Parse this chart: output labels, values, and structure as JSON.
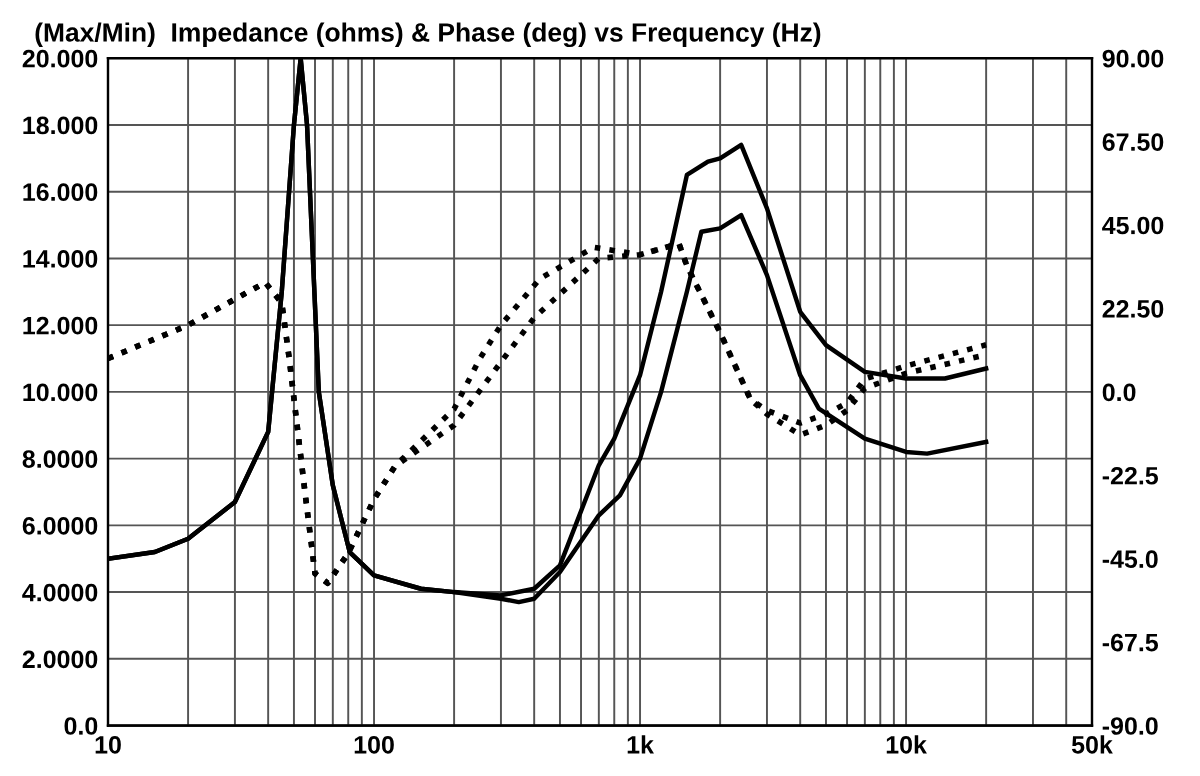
{
  "chart_data": {
    "type": "line",
    "title": "(Max/Min)  Impedance (ohms) & Phase (deg) vs Frequency (Hz)",
    "log": "x",
    "grid": true,
    "marker": "none",
    "xlim": [
      10,
      50000
    ],
    "xticks": [
      10,
      {
        "value": 20,
        "label": null
      },
      {
        "value": 30,
        "label": null
      },
      {
        "value": 40,
        "label": null
      },
      {
        "value": 50,
        "label": null
      },
      {
        "value": 60,
        "label": null
      },
      {
        "value": 70,
        "label": null
      },
      {
        "value": 80,
        "label": null
      },
      {
        "value": 90,
        "label": null
      },
      100,
      {
        "value": 200,
        "label": null
      },
      {
        "value": 300,
        "label": null
      },
      {
        "value": 400,
        "label": null
      },
      {
        "value": 500,
        "label": null
      },
      {
        "value": 600,
        "label": null
      },
      {
        "value": 700,
        "label": null
      },
      {
        "value": 800,
        "label": null
      },
      {
        "value": 900,
        "label": null
      },
      {
        "value": 1000,
        "label": "1k"
      },
      {
        "value": 2000,
        "label": null
      },
      {
        "value": 3000,
        "label": null
      },
      {
        "value": 4000,
        "label": null
      },
      {
        "value": 5000,
        "label": null
      },
      {
        "value": 6000,
        "label": null
      },
      {
        "value": 7000,
        "label": null
      },
      {
        "value": 8000,
        "label": null
      },
      {
        "value": 9000,
        "label": null
      },
      {
        "value": 10000,
        "label": "10k"
      },
      {
        "value": 20000,
        "label": null
      },
      {
        "value": 30000,
        "label": null
      },
      {
        "value": 40000,
        "label": null
      },
      {
        "value": 50000,
        "label": "50k"
      }
    ],
    "ylim": [
      0,
      20
    ],
    "yticks": [
      {
        "value": 0,
        "label": "0.0"
      },
      {
        "value": 2,
        "label": "2.0000"
      },
      {
        "value": 4,
        "label": "4.0000"
      },
      {
        "value": 6,
        "label": "6.0000"
      },
      {
        "value": 8,
        "label": "8.0000"
      },
      {
        "value": 10,
        "label": "10.000"
      },
      {
        "value": 12,
        "label": "12.000"
      },
      {
        "value": 14,
        "label": "14.000"
      },
      {
        "value": 16,
        "label": "16.000"
      },
      {
        "value": 18,
        "label": "18.000"
      },
      {
        "value": 20,
        "label": "20.000"
      }
    ],
    "y2lim": [
      -90,
      90
    ],
    "y2ticks": [
      {
        "value": -90,
        "label": "-90.0"
      },
      {
        "value": -67.5,
        "label": "-67.5"
      },
      {
        "value": -45,
        "label": "-45.0"
      },
      {
        "value": -22.5,
        "label": "-22.5"
      },
      {
        "value": 0,
        "label": "0.0"
      },
      {
        "value": 22.5,
        "label": "22.50"
      },
      {
        "value": 45,
        "label": "45.00"
      },
      {
        "value": 67.5,
        "label": "67.50"
      },
      {
        "value": 90,
        "label": "90.00"
      }
    ],
    "series": [
      {
        "color": "#000000",
        "line_style": "solid",
        "x": [
          10,
          15,
          20,
          30,
          40,
          45,
          50,
          53,
          56,
          62,
          70,
          81,
          100,
          150,
          200,
          300,
          400,
          500,
          700,
          800,
          1000,
          1200,
          1500,
          1800,
          2000,
          2400,
          3000,
          4000,
          5000,
          7000,
          10000,
          14000,
          20000
        ],
        "values": [
          5.0,
          5.2,
          5.6,
          6.7,
          8.8,
          13,
          18,
          20,
          18,
          10,
          7.2,
          5.2,
          4.5,
          4.1,
          4.0,
          3.9,
          4.1,
          4.8,
          7.8,
          8.6,
          10.5,
          13,
          16.5,
          16.9,
          17.0,
          17.4,
          15.5,
          12.4,
          11.4,
          10.6,
          10.4,
          10.4,
          10.7
        ]
      },
      {
        "color": "#000000",
        "line_style": "solid",
        "x": [
          10,
          15,
          20,
          30,
          40,
          45,
          50,
          53,
          56,
          62,
          70,
          81,
          100,
          150,
          200,
          300,
          350,
          400,
          500,
          700,
          840,
          1000,
          1200,
          1500,
          1700,
          2000,
          2400,
          3000,
          4000,
          4700,
          7000,
          10000,
          12000,
          20000
        ],
        "values": [
          5.0,
          5.2,
          5.6,
          6.7,
          8.8,
          13,
          18,
          20,
          18,
          10,
          7.2,
          5.2,
          4.5,
          4.1,
          4.0,
          3.8,
          3.7,
          3.8,
          4.6,
          6.3,
          6.9,
          8.0,
          10,
          13,
          14.8,
          14.9,
          15.3,
          13.5,
          10.5,
          9.5,
          8.6,
          8.2,
          8.15,
          8.5
        ]
      },
      {
        "color": "#000000",
        "line_style": "dotted",
        "axis": "y2",
        "x": [
          10,
          20,
          30,
          39,
          45,
          48,
          55,
          60,
          67,
          80,
          100,
          120,
          200,
          250,
          300,
          420,
          670,
          1000,
          1400,
          1500,
          2000,
          2600,
          3000,
          4000,
          5000,
          6000,
          7000,
          10000,
          20000
        ],
        "values": [
          9,
          18,
          25,
          29.5,
          24,
          9,
          -27,
          -49,
          -51.6,
          -43.5,
          -29,
          -20,
          -4.6,
          9,
          18,
          30.5,
          39,
          37,
          40,
          34,
          16,
          -2,
          -5,
          -8.4,
          -6,
          -3,
          3.5,
          7,
          12.7
        ]
      },
      {
        "color": "#000000",
        "line_style": "dotted",
        "axis": "y2",
        "x": [
          10,
          20,
          30,
          39,
          45,
          48,
          55,
          60,
          67,
          80,
          100,
          120,
          200,
          307,
          400,
          700,
          1000,
          1400,
          1500,
          2000,
          2600,
          3000,
          4000,
          5000,
          6000,
          7000,
          10000,
          20000
        ],
        "values": [
          9,
          18,
          25,
          29.5,
          24,
          9,
          -27,
          -49,
          -51.6,
          -43.5,
          -29,
          -20,
          -9,
          9,
          20,
          36,
          37,
          40,
          34,
          16,
          -2,
          -6,
          -11.6,
          -9,
          -5,
          1,
          5,
          10
        ]
      }
    ]
  }
}
